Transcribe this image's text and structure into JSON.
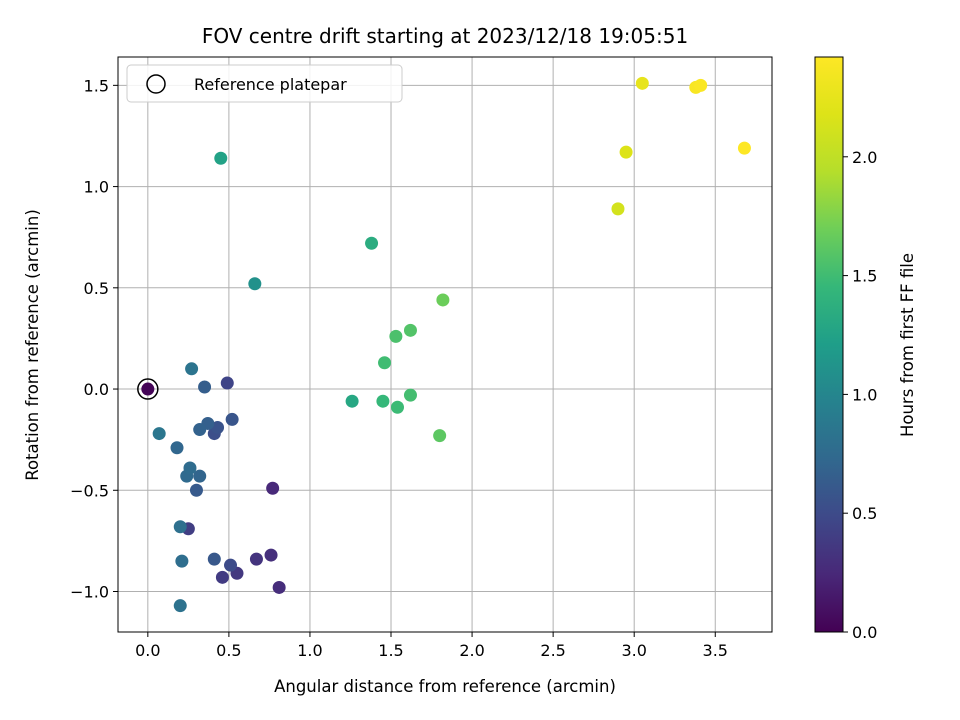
{
  "chart_data": {
    "type": "scatter",
    "title": "FOV centre drift starting at 2023/12/18 19:05:51",
    "xlabel": "Angular distance from reference (arcmin)",
    "ylabel": "Rotation from reference (arcmin)",
    "xlim": [
      -0.184,
      3.85
    ],
    "ylim": [
      -1.2,
      1.64
    ],
    "xticks": [
      {
        "value": 0.0,
        "label": "0.0"
      },
      {
        "value": 0.5,
        "label": "0.5"
      },
      {
        "value": 1.0,
        "label": "1.0"
      },
      {
        "value": 1.5,
        "label": "1.5"
      },
      {
        "value": 2.0,
        "label": "2.0"
      },
      {
        "value": 2.5,
        "label": "2.5"
      },
      {
        "value": 3.0,
        "label": "3.0"
      },
      {
        "value": 3.5,
        "label": "3.5"
      }
    ],
    "yticks": [
      {
        "value": -1.0,
        "label": "−1.0"
      },
      {
        "value": -0.5,
        "label": "−0.5"
      },
      {
        "value": 0.0,
        "label": "0.0"
      },
      {
        "value": 0.5,
        "label": "0.5"
      },
      {
        "value": 1.0,
        "label": "1.0"
      },
      {
        "value": 1.5,
        "label": "1.5"
      }
    ],
    "grid": true,
    "colormap": "viridis",
    "colorbar": {
      "label": "Hours from first FF file",
      "range": [
        0.0,
        2.42
      ],
      "ticks": [
        {
          "value": 0.0,
          "label": "0.0"
        },
        {
          "value": 0.5,
          "label": "0.5"
        },
        {
          "value": 1.0,
          "label": "1.0"
        },
        {
          "value": 1.5,
          "label": "1.5"
        },
        {
          "value": 2.0,
          "label": "2.0"
        }
      ]
    },
    "legend": {
      "placement": "top-left",
      "entries": [
        "Reference platepar"
      ]
    },
    "reference_point": {
      "x": 0.0,
      "y": 0.0
    },
    "points": [
      {
        "x": 0.0,
        "y": 0.0,
        "hours": 0.02
      },
      {
        "x": 0.77,
        "y": -0.49,
        "hours": 0.25
      },
      {
        "x": 0.81,
        "y": -0.98,
        "hours": 0.28
      },
      {
        "x": 0.76,
        "y": -0.82,
        "hours": 0.3
      },
      {
        "x": 0.67,
        "y": -0.84,
        "hours": 0.33
      },
      {
        "x": 0.55,
        "y": -0.91,
        "hours": 0.36
      },
      {
        "x": 0.46,
        "y": -0.93,
        "hours": 0.38
      },
      {
        "x": 0.25,
        "y": -0.69,
        "hours": 0.4
      },
      {
        "x": 0.49,
        "y": 0.03,
        "hours": 0.45
      },
      {
        "x": 0.51,
        "y": -0.87,
        "hours": 0.5
      },
      {
        "x": 0.41,
        "y": -0.22,
        "hours": 0.53
      },
      {
        "x": 0.43,
        "y": -0.19,
        "hours": 0.56
      },
      {
        "x": 0.52,
        "y": -0.15,
        "hours": 0.58
      },
      {
        "x": 0.41,
        "y": -0.84,
        "hours": 0.6
      },
      {
        "x": 0.3,
        "y": -0.5,
        "hours": 0.62
      },
      {
        "x": 0.35,
        "y": 0.01,
        "hours": 0.65
      },
      {
        "x": 0.37,
        "y": -0.17,
        "hours": 0.66
      },
      {
        "x": 0.32,
        "y": -0.2,
        "hours": 0.68
      },
      {
        "x": 0.32,
        "y": -0.43,
        "hours": 0.7
      },
      {
        "x": 0.18,
        "y": -0.29,
        "hours": 0.72
      },
      {
        "x": 0.24,
        "y": -0.43,
        "hours": 0.74
      },
      {
        "x": 0.26,
        "y": -0.39,
        "hours": 0.76
      },
      {
        "x": 0.21,
        "y": -0.85,
        "hours": 0.78
      },
      {
        "x": 0.2,
        "y": -0.68,
        "hours": 0.8
      },
      {
        "x": 0.2,
        "y": -1.07,
        "hours": 0.82
      },
      {
        "x": 0.27,
        "y": 0.1,
        "hours": 0.84
      },
      {
        "x": 0.07,
        "y": -0.22,
        "hours": 0.86
      },
      {
        "x": 0.66,
        "y": 0.52,
        "hours": 1.1
      },
      {
        "x": 0.45,
        "y": 1.14,
        "hours": 1.25
      },
      {
        "x": 1.26,
        "y": -0.06,
        "hours": 1.3
      },
      {
        "x": 1.38,
        "y": 0.72,
        "hours": 1.35
      },
      {
        "x": 1.45,
        "y": -0.06,
        "hours": 1.45
      },
      {
        "x": 1.54,
        "y": -0.09,
        "hours": 1.48
      },
      {
        "x": 1.46,
        "y": 0.13,
        "hours": 1.5
      },
      {
        "x": 1.62,
        "y": -0.03,
        "hours": 1.52
      },
      {
        "x": 1.53,
        "y": 0.26,
        "hours": 1.55
      },
      {
        "x": 1.62,
        "y": 0.29,
        "hours": 1.58
      },
      {
        "x": 1.8,
        "y": -0.23,
        "hours": 1.62
      },
      {
        "x": 1.82,
        "y": 0.44,
        "hours": 1.68
      },
      {
        "x": 2.9,
        "y": 0.89,
        "hours": 2.12
      },
      {
        "x": 2.95,
        "y": 1.17,
        "hours": 2.18
      },
      {
        "x": 3.05,
        "y": 1.51,
        "hours": 2.25
      },
      {
        "x": 3.38,
        "y": 1.49,
        "hours": 2.38
      },
      {
        "x": 3.41,
        "y": 1.5,
        "hours": 2.4
      },
      {
        "x": 3.68,
        "y": 1.19,
        "hours": 2.42
      }
    ]
  }
}
